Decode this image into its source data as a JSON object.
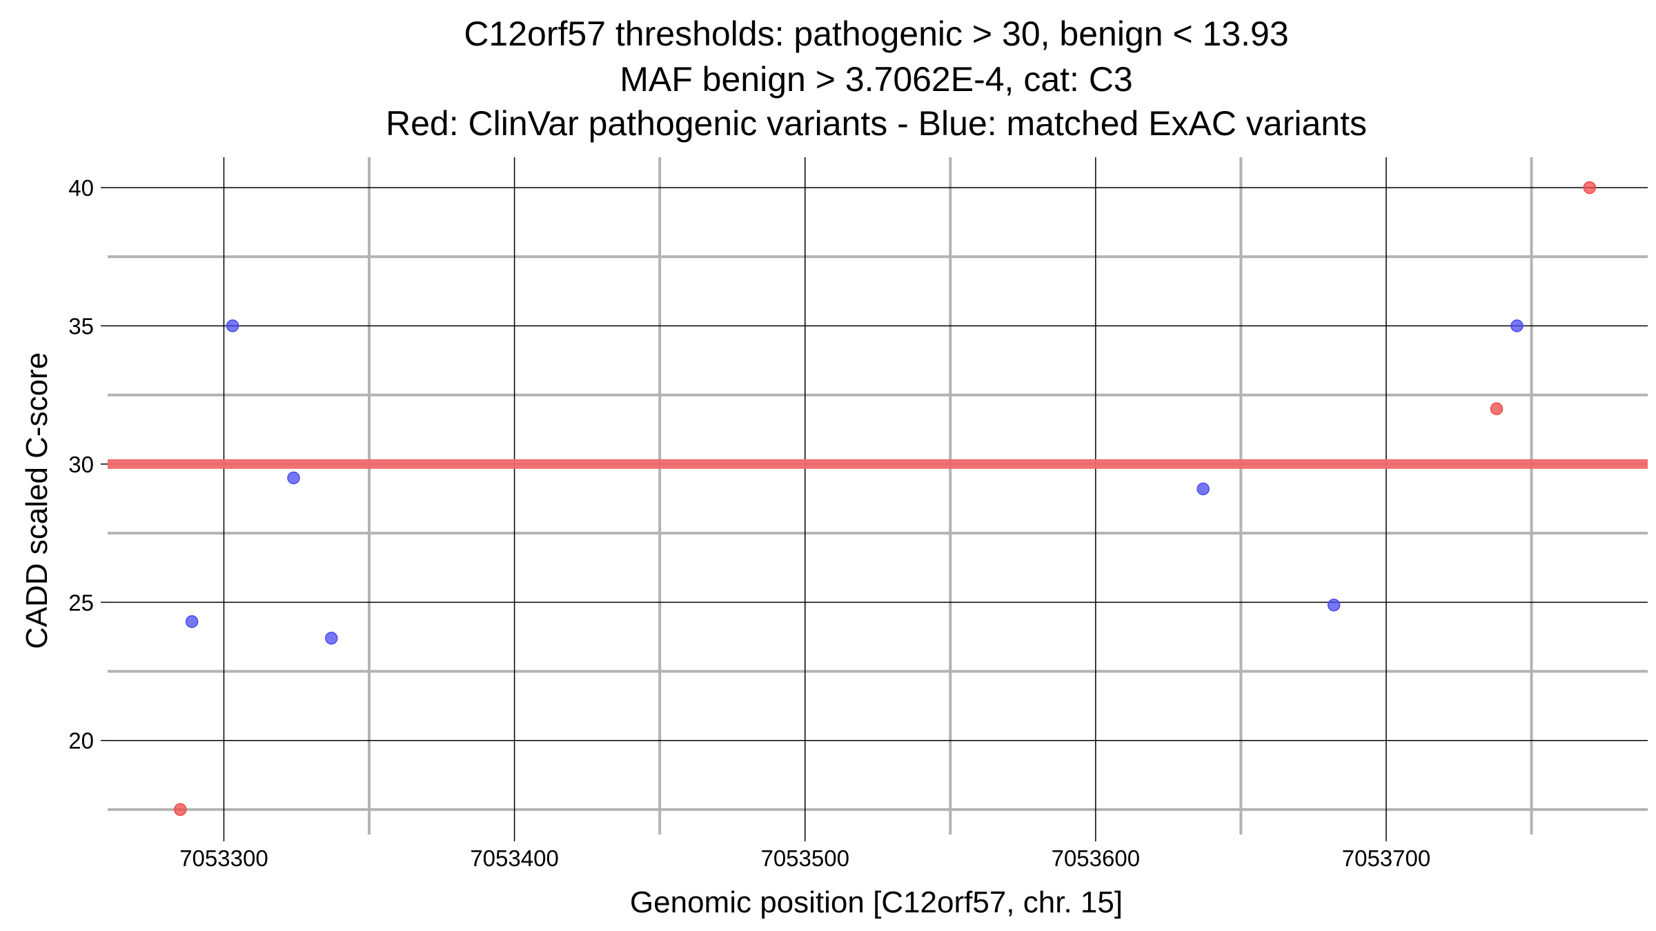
{
  "chart_data": {
    "type": "scatter",
    "title": [
      "C12orf57 thresholds: pathogenic > 30, benign < 13.93",
      "MAF benign > 3.7062E-4, cat: C3",
      "Red: ClinVar pathogenic variants - Blue: matched ExAC variants"
    ],
    "xlabel": "Genomic position [C12orf57, chr. 15]",
    "ylabel": "CADD scaled C-score",
    "xlim": [
      7053260,
      7053790
    ],
    "ylim": [
      16.6,
      41.1
    ],
    "x_ticks": [
      7053300,
      7053400,
      7053500,
      7053600,
      7053700
    ],
    "x_tick_labels": [
      "7053300",
      "7053400",
      "7053500",
      "7053600",
      "7053700"
    ],
    "x_minor_gridlines": [
      7053350,
      7053450,
      7053550,
      7053650,
      7053750
    ],
    "y_ticks": [
      20,
      25,
      30,
      35,
      40
    ],
    "y_tick_labels": [
      "20",
      "25",
      "30",
      "35",
      "40"
    ],
    "y_minor_gridlines": [
      17.5,
      22.5,
      27.5,
      32.5,
      37.5
    ],
    "grid": true,
    "legend": "none",
    "threshold_line": {
      "y": 30,
      "color": "#f06a6a"
    },
    "series": [
      {
        "color": "#f04848",
        "points": [
          {
            "x": 7053285,
            "y": 17.5
          },
          {
            "x": 7053738,
            "y": 32.0
          },
          {
            "x": 7053770,
            "y": 40.0
          }
        ]
      },
      {
        "color": "#4a4af0",
        "points": [
          {
            "x": 7053289,
            "y": 24.3
          },
          {
            "x": 7053303,
            "y": 35.0
          },
          {
            "x": 7053324,
            "y": 29.5
          },
          {
            "x": 7053337,
            "y": 23.7
          },
          {
            "x": 7053637,
            "y": 29.1
          },
          {
            "x": 7053682,
            "y": 24.9
          },
          {
            "x": 7053745,
            "y": 35.0
          }
        ]
      }
    ]
  }
}
